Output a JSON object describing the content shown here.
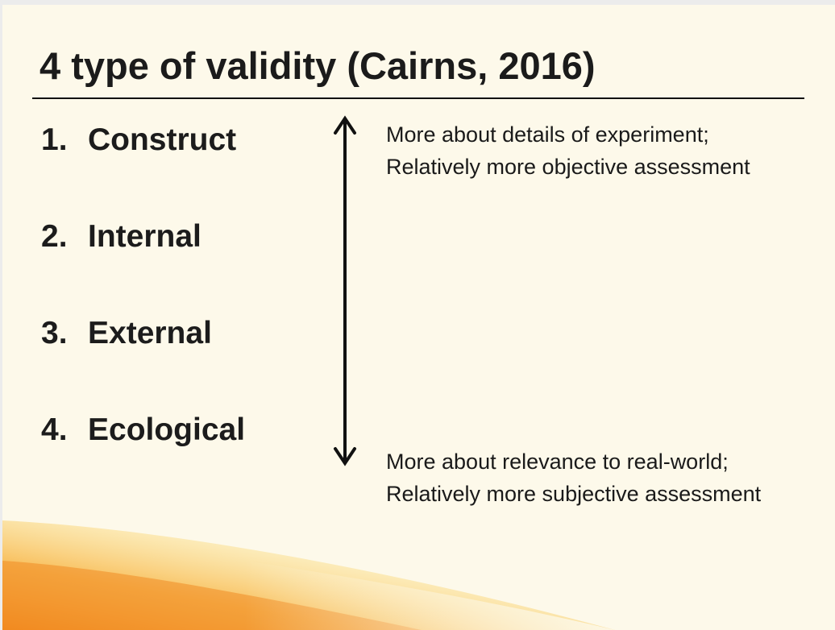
{
  "slide": {
    "title": "4 type of validity (Cairns, 2016)",
    "types": [
      {
        "number": "1.",
        "label": "Construct"
      },
      {
        "number": "2.",
        "label": "Internal"
      },
      {
        "number": "3.",
        "label": "External"
      },
      {
        "number": "4.",
        "label": "Ecological"
      }
    ],
    "top_note": {
      "line1": "More about details of experiment;",
      "line2": "Relatively more objective assessment"
    },
    "bottom_note": {
      "line1": "More about relevance to real-world;",
      "line2": "Relatively more subjective assessment"
    }
  },
  "colors": {
    "background": "#fdf9ea",
    "text": "#1c1c1c",
    "accent_glow": "#f39b2b"
  }
}
